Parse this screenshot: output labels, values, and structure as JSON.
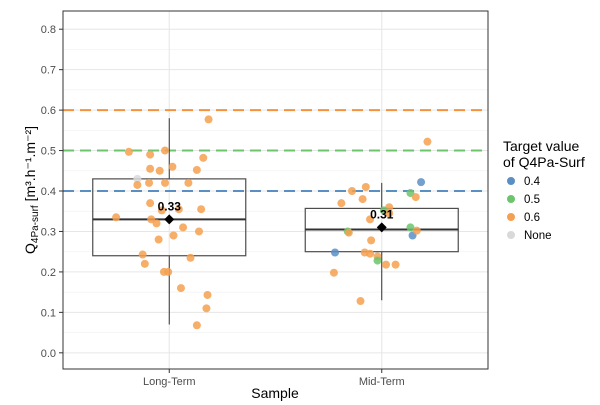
{
  "chart_data": {
    "type": "boxplot-with-jitter",
    "xlabel": "Sample",
    "ylabel_main": "Q",
    "ylabel_sub": "4Pa-surf",
    "ylabel_units": " [m³.h⁻¹.m⁻²]",
    "ylim": [
      -0.04,
      0.845
    ],
    "yticks": [
      "0.0",
      "0.1",
      "0.2",
      "0.3",
      "0.4",
      "0.5",
      "0.6",
      "0.7",
      "0.8"
    ],
    "grid": true,
    "categories": [
      "Long-Term",
      "Mid-Term"
    ],
    "reference_lines": [
      {
        "y": 0.4,
        "color": "#5a8fc4"
      },
      {
        "y": 0.5,
        "color": "#6cc46c"
      },
      {
        "y": 0.6,
        "color": "#f5923e"
      }
    ],
    "boxes": [
      {
        "category": "Long-Term",
        "q1": 0.24,
        "median": 0.33,
        "q3": 0.43,
        "whisker_low": 0.07,
        "whisker_high": 0.58,
        "mean": 0.33,
        "mean_label": "0.33"
      },
      {
        "category": "Mid-Term",
        "q1": 0.25,
        "median": 0.305,
        "q3": 0.357,
        "whisker_low": 0.13,
        "whisker_high": 0.42,
        "mean": 0.31,
        "mean_label": "0.31"
      }
    ],
    "points": [
      {
        "category": "Long-Term",
        "jitter": -0.38,
        "value": 0.497,
        "group": "0.6"
      },
      {
        "category": "Long-Term",
        "jitter": -0.18,
        "value": 0.49,
        "group": "0.6"
      },
      {
        "category": "Long-Term",
        "jitter": -0.04,
        "value": 0.5,
        "group": "0.6"
      },
      {
        "category": "Long-Term",
        "jitter": -0.3,
        "value": 0.43,
        "group": "None"
      },
      {
        "category": "Long-Term",
        "jitter": -0.18,
        "value": 0.455,
        "group": "0.6"
      },
      {
        "category": "Long-Term",
        "jitter": -0.09,
        "value": 0.45,
        "group": "0.6"
      },
      {
        "category": "Long-Term",
        "jitter": 0.03,
        "value": 0.46,
        "group": "0.6"
      },
      {
        "category": "Long-Term",
        "jitter": 0.37,
        "value": 0.577,
        "group": "0.6"
      },
      {
        "category": "Long-Term",
        "jitter": 0.32,
        "value": 0.482,
        "group": "0.6"
      },
      {
        "category": "Long-Term",
        "jitter": 0.26,
        "value": 0.452,
        "group": "0.6"
      },
      {
        "category": "Long-Term",
        "jitter": -0.3,
        "value": 0.415,
        "group": "0.6"
      },
      {
        "category": "Long-Term",
        "jitter": -0.19,
        "value": 0.42,
        "group": "0.6"
      },
      {
        "category": "Long-Term",
        "jitter": -0.04,
        "value": 0.42,
        "group": "0.6"
      },
      {
        "category": "Long-Term",
        "jitter": 0.18,
        "value": 0.42,
        "group": "0.6"
      },
      {
        "category": "Long-Term",
        "jitter": -0.18,
        "value": 0.37,
        "group": "0.6"
      },
      {
        "category": "Long-Term",
        "jitter": -0.07,
        "value": 0.352,
        "group": "0.6"
      },
      {
        "category": "Long-Term",
        "jitter": 0.09,
        "value": 0.355,
        "group": "0.6"
      },
      {
        "category": "Long-Term",
        "jitter": 0.3,
        "value": 0.355,
        "group": "0.6"
      },
      {
        "category": "Long-Term",
        "jitter": -0.5,
        "value": 0.335,
        "group": "0.6"
      },
      {
        "category": "Long-Term",
        "jitter": -0.17,
        "value": 0.33,
        "group": "0.6"
      },
      {
        "category": "Long-Term",
        "jitter": -0.12,
        "value": 0.32,
        "group": "0.6"
      },
      {
        "category": "Long-Term",
        "jitter": 0.13,
        "value": 0.31,
        "group": "0.6"
      },
      {
        "category": "Long-Term",
        "jitter": 0.28,
        "value": 0.3,
        "group": "0.6"
      },
      {
        "category": "Long-Term",
        "jitter": -0.1,
        "value": 0.28,
        "group": "0.6"
      },
      {
        "category": "Long-Term",
        "jitter": 0.04,
        "value": 0.29,
        "group": "0.6"
      },
      {
        "category": "Long-Term",
        "jitter": -0.25,
        "value": 0.243,
        "group": "0.6"
      },
      {
        "category": "Long-Term",
        "jitter": 0.2,
        "value": 0.235,
        "group": "0.6"
      },
      {
        "category": "Long-Term",
        "jitter": -0.23,
        "value": 0.22,
        "group": "0.6"
      },
      {
        "category": "Long-Term",
        "jitter": -0.05,
        "value": 0.2,
        "group": "0.6"
      },
      {
        "category": "Long-Term",
        "jitter": -0.01,
        "value": 0.2,
        "group": "0.6"
      },
      {
        "category": "Long-Term",
        "jitter": 0.11,
        "value": 0.16,
        "group": "0.6"
      },
      {
        "category": "Long-Term",
        "jitter": 0.36,
        "value": 0.143,
        "group": "0.6"
      },
      {
        "category": "Long-Term",
        "jitter": 0.35,
        "value": 0.11,
        "group": "0.6"
      },
      {
        "category": "Long-Term",
        "jitter": 0.26,
        "value": 0.068,
        "group": "0.6"
      },
      {
        "category": "Mid-Term",
        "jitter": 0.43,
        "value": 0.522,
        "group": "0.6"
      },
      {
        "category": "Mid-Term",
        "jitter": 0.37,
        "value": 0.422,
        "group": "0.4"
      },
      {
        "category": "Mid-Term",
        "jitter": -0.15,
        "value": 0.41,
        "group": "0.6"
      },
      {
        "category": "Mid-Term",
        "jitter": -0.28,
        "value": 0.4,
        "group": "0.6"
      },
      {
        "category": "Mid-Term",
        "jitter": 0.27,
        "value": 0.395,
        "group": "0.5"
      },
      {
        "category": "Mid-Term",
        "jitter": 0.32,
        "value": 0.385,
        "group": "0.6"
      },
      {
        "category": "Mid-Term",
        "jitter": -0.18,
        "value": 0.38,
        "group": "0.6"
      },
      {
        "category": "Mid-Term",
        "jitter": -0.38,
        "value": 0.37,
        "group": "0.6"
      },
      {
        "category": "Mid-Term",
        "jitter": 0.07,
        "value": 0.36,
        "group": "0.6"
      },
      {
        "category": "Mid-Term",
        "jitter": 0.02,
        "value": 0.352,
        "group": "0.5"
      },
      {
        "category": "Mid-Term",
        "jitter": 0.07,
        "value": 0.345,
        "group": "0.6"
      },
      {
        "category": "Mid-Term",
        "jitter": -0.11,
        "value": 0.33,
        "group": "0.6"
      },
      {
        "category": "Mid-Term",
        "jitter": 0.27,
        "value": 0.31,
        "group": "0.5"
      },
      {
        "category": "Mid-Term",
        "jitter": 0.29,
        "value": 0.29,
        "group": "0.4"
      },
      {
        "category": "Mid-Term",
        "jitter": -0.32,
        "value": 0.3,
        "group": "0.5"
      },
      {
        "category": "Mid-Term",
        "jitter": -0.31,
        "value": 0.297,
        "group": "0.6"
      },
      {
        "category": "Mid-Term",
        "jitter": 0.33,
        "value": 0.302,
        "group": "0.6"
      },
      {
        "category": "Mid-Term",
        "jitter": -0.1,
        "value": 0.278,
        "group": "0.6"
      },
      {
        "category": "Mid-Term",
        "jitter": -0.44,
        "value": 0.248,
        "group": "0.4"
      },
      {
        "category": "Mid-Term",
        "jitter": -0.16,
        "value": 0.248,
        "group": "0.6"
      },
      {
        "category": "Mid-Term",
        "jitter": -0.11,
        "value": 0.245,
        "group": "0.6"
      },
      {
        "category": "Mid-Term",
        "jitter": -0.04,
        "value": 0.238,
        "group": "0.6"
      },
      {
        "category": "Mid-Term",
        "jitter": -0.04,
        "value": 0.228,
        "group": "0.5"
      },
      {
        "category": "Mid-Term",
        "jitter": 0.04,
        "value": 0.218,
        "group": "0.6"
      },
      {
        "category": "Mid-Term",
        "jitter": 0.13,
        "value": 0.218,
        "group": "0.6"
      },
      {
        "category": "Mid-Term",
        "jitter": -0.45,
        "value": 0.198,
        "group": "0.6"
      },
      {
        "category": "Mid-Term",
        "jitter": -0.2,
        "value": 0.128,
        "group": "0.6"
      }
    ],
    "legend": {
      "title_line1": "Target value",
      "title_line2": "of Q4Pa-Surf",
      "position": "right",
      "entries": [
        {
          "label": "0.4",
          "color": "#5a8fc4"
        },
        {
          "label": "0.5",
          "color": "#6cc46c"
        },
        {
          "label": "0.6",
          "color": "#f5a04f"
        },
        {
          "label": "None",
          "color": "#d9d9d9"
        }
      ]
    }
  }
}
